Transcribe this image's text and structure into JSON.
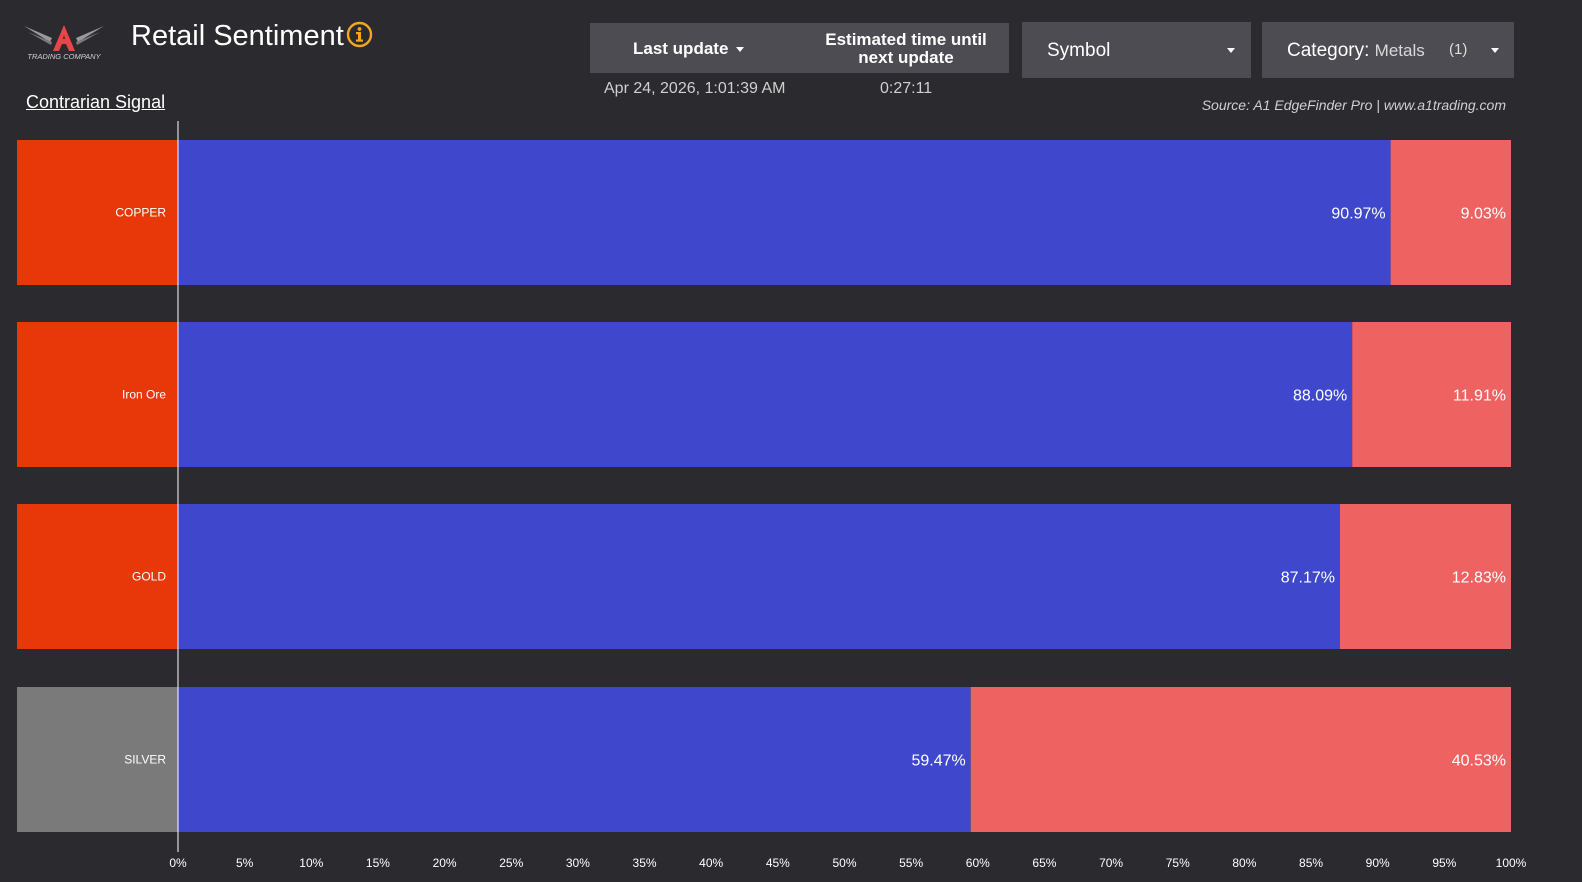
{
  "header": {
    "title": "Retail Sentiment",
    "logo_text": "TRADING COMPANY",
    "last_update_label": "Last update",
    "estimated_label_line1": "Estimated time until",
    "estimated_label_line2": "next update",
    "last_update_value": "Apr 24, 2026, 1:01:39 AM",
    "estimated_value": "0:27:11",
    "contrarian_signal": "Contrarian Signal",
    "source": "Source: A1 EdgeFinder Pro | www.a1trading.com"
  },
  "filters": {
    "symbol_label": "Symbol",
    "category_label": "Category",
    "category_value": "Metals",
    "category_count": "(1)"
  },
  "colors": {
    "background": "#2b2a2f",
    "long": "#3f48cc",
    "short": "#ef6262",
    "signal_sell": "#e8380a",
    "signal_neutral": "#7a7a7a",
    "accent_info": "#f2a81d"
  },
  "chart_data": {
    "type": "bar",
    "orientation": "horizontal",
    "stacked": true,
    "categories": [
      "COPPER",
      "Iron Ore",
      "GOLD",
      "SILVER"
    ],
    "series": [
      {
        "values": [
          90.97,
          88.09,
          87.17,
          59.47
        ],
        "labels": [
          "90.97%",
          "88.09%",
          "87.17%",
          "59.47%"
        ]
      },
      {
        "values": [
          9.03,
          11.91,
          12.83,
          40.53
        ],
        "labels": [
          "9.03%",
          "11.91%",
          "12.83%",
          "40.53%"
        ]
      }
    ],
    "signals": [
      "signal_sell",
      "signal_sell",
      "signal_sell",
      "signal_neutral"
    ],
    "xlim": [
      0,
      100
    ],
    "xticks": [
      "0%",
      "5%",
      "10%",
      "15%",
      "20%",
      "25%",
      "30%",
      "35%",
      "40%",
      "45%",
      "50%",
      "55%",
      "60%",
      "65%",
      "70%",
      "75%",
      "80%",
      "85%",
      "90%",
      "95%",
      "100%"
    ],
    "grid": false
  }
}
